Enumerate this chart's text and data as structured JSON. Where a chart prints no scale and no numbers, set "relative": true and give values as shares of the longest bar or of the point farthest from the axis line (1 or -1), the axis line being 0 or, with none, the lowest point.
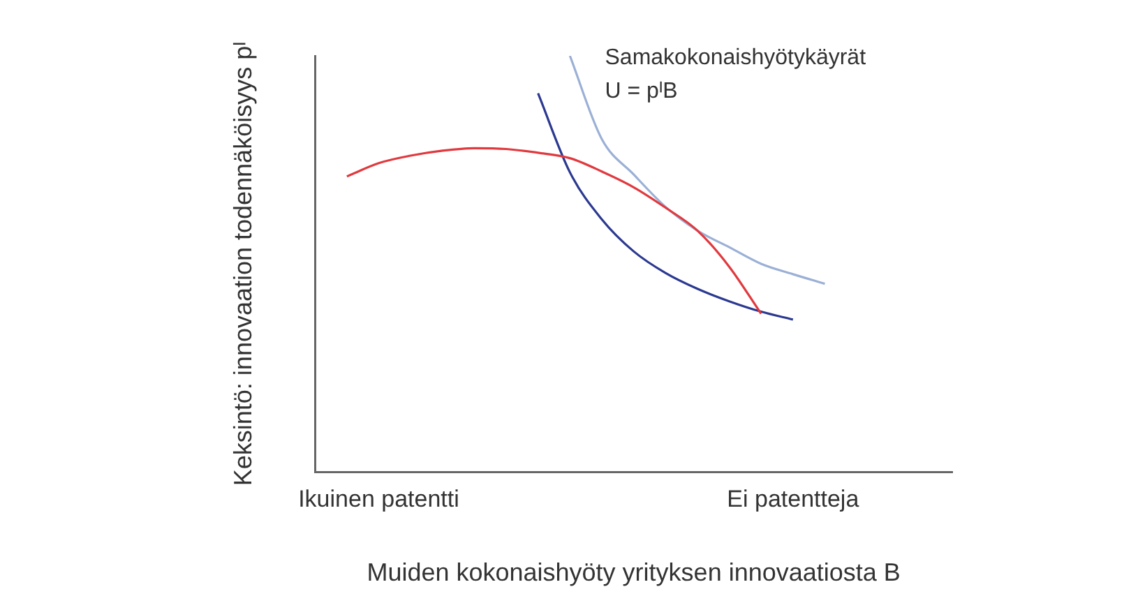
{
  "chart_data": {
    "type": "line",
    "relative": true,
    "xlabel": "Muiden kokonaishyöty yrityksen innovaatiosta B",
    "ylabel": "Keksintö: innovaation todennäköisyys pᴵ",
    "annotations": [
      "Samakokonaishyötykäyrät",
      "U = pᴵB"
    ],
    "categories": [
      null,
      null,
      "Ikuinen patentti",
      null,
      null,
      null,
      null,
      null,
      null,
      null,
      null,
      null,
      null,
      null,
      null,
      "Ei patentteja",
      null,
      null,
      null,
      null,
      null
    ],
    "tick_labels": "x",
    "legend": false,
    "grid": false,
    "marker": "none",
    "line_style": "solid",
    "series": [
      {
        "color": "#e0393e",
        "values": [
          null,
          0.71,
          0.742,
          0.76,
          0.772,
          0.778,
          0.776,
          0.767,
          0.754,
          0.722,
          0.684,
          0.635,
          0.58,
          0.493,
          0.38,
          null,
          null,
          null,
          null,
          null,
          null
        ]
      },
      {
        "color": "#2b3990",
        "values": [
          null,
          null,
          null,
          null,
          null,
          null,
          null,
          0.91,
          0.72,
          0.607,
          0.53,
          0.478,
          0.44,
          0.41,
          0.385,
          0.366,
          null,
          null,
          null,
          null,
          null
        ]
      },
      {
        "color": "#9bb0d6",
        "values": [
          null,
          null,
          null,
          null,
          null,
          null,
          null,
          null,
          1.0,
          0.8,
          0.715,
          0.637,
          0.58,
          0.54,
          0.5,
          0.475,
          0.452,
          null,
          null,
          null,
          null
        ]
      }
    ]
  }
}
